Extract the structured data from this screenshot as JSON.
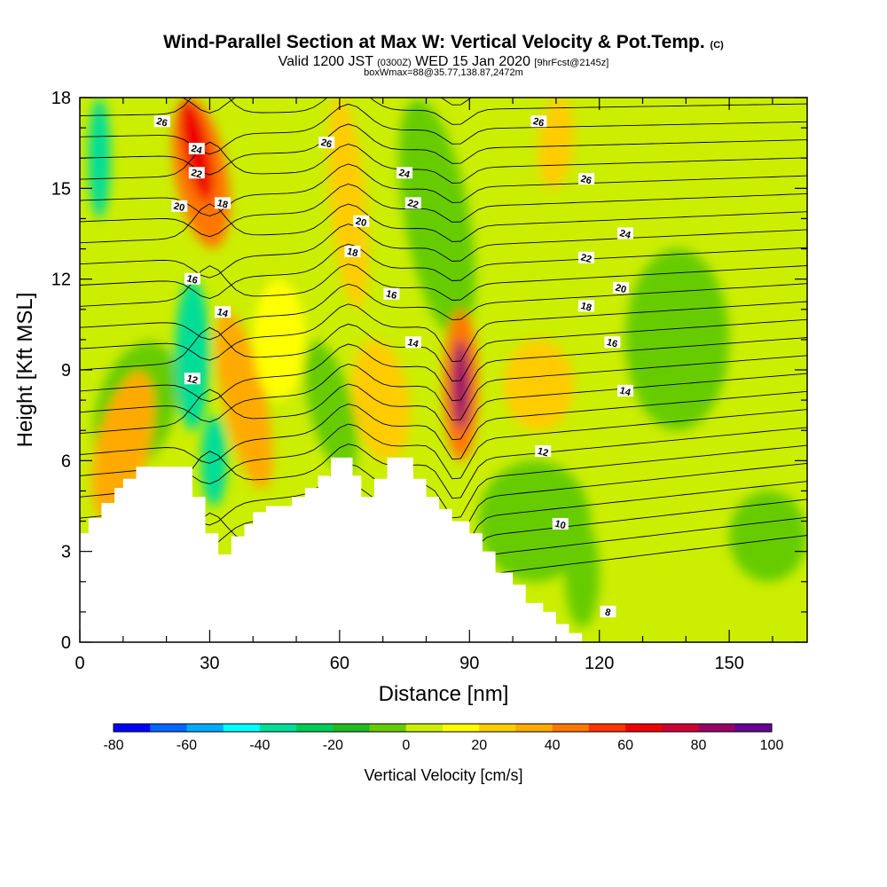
{
  "header": {
    "title": "Wind-Parallel Section at Max W: Vertical Velocity & Pot.Temp.",
    "copyright": "(C)",
    "valid_main": "Valid 1200 JST",
    "valid_utc": "(0300Z)",
    "valid_date": "WED 15 Jan 2020",
    "forecast": "[9hrFcst@2145z]",
    "box_info": "boxWmax=88@35.77,138.87,2472m"
  },
  "chart_data": {
    "type": "heatmap",
    "xlabel": "Distance [nm]",
    "ylabel": "Height [Kft MSL]",
    "xlim": [
      0,
      168
    ],
    "ylim": [
      0,
      18
    ],
    "x_ticks": [
      0,
      30,
      60,
      90,
      120,
      150
    ],
    "y_ticks": [
      0,
      3,
      6,
      9,
      12,
      15,
      18
    ],
    "colorbar": {
      "label": "Vertical Velocity [cm/s]",
      "min": -80,
      "max": 100,
      "step": 10,
      "tick_labels": [
        "-80",
        "-60",
        "-40",
        "-20",
        "0",
        "20",
        "40",
        "60",
        "80",
        "100"
      ],
      "colors": [
        "#0000ff",
        "#0066ff",
        "#00aaff",
        "#00ffff",
        "#00dd99",
        "#00cc55",
        "#22bb22",
        "#66cc00",
        "#ccee00",
        "#ffff00",
        "#ffcc00",
        "#ffaa00",
        "#ff7700",
        "#ff3300",
        "#ee0000",
        "#cc0033",
        "#990066",
        "#660099"
      ]
    },
    "max_w_cms": 88,
    "max_w_location": {
      "distance_nm": 88,
      "height_kft": 8
    },
    "isentrope_labels": [
      {
        "value": "26",
        "x": 19,
        "y": 17.2
      },
      {
        "value": "24",
        "x": 27,
        "y": 16.3
      },
      {
        "value": "22",
        "x": 27,
        "y": 15.5
      },
      {
        "value": "20",
        "x": 23,
        "y": 14.4
      },
      {
        "value": "18",
        "x": 33,
        "y": 14.5
      },
      {
        "value": "16",
        "x": 26,
        "y": 12.0
      },
      {
        "value": "14",
        "x": 33,
        "y": 10.9
      },
      {
        "value": "12",
        "x": 26,
        "y": 8.7
      },
      {
        "value": "26",
        "x": 57,
        "y": 16.5
      },
      {
        "value": "24",
        "x": 75,
        "y": 15.5
      },
      {
        "value": "22",
        "x": 77,
        "y": 14.5
      },
      {
        "value": "20",
        "x": 65,
        "y": 13.9
      },
      {
        "value": "18",
        "x": 63,
        "y": 12.9
      },
      {
        "value": "16",
        "x": 72,
        "y": 11.5
      },
      {
        "value": "14",
        "x": 77,
        "y": 9.9
      },
      {
        "value": "26",
        "x": 106,
        "y": 17.2
      },
      {
        "value": "26",
        "x": 117,
        "y": 15.3
      },
      {
        "value": "24",
        "x": 126,
        "y": 13.5
      },
      {
        "value": "22",
        "x": 117,
        "y": 12.7
      },
      {
        "value": "20",
        "x": 125,
        "y": 11.7
      },
      {
        "value": "18",
        "x": 117,
        "y": 11.1
      },
      {
        "value": "16",
        "x": 123,
        "y": 9.9
      },
      {
        "value": "14",
        "x": 126,
        "y": 8.3
      },
      {
        "value": "12",
        "x": 107,
        "y": 6.3
      },
      {
        "value": "10",
        "x": 111,
        "y": 3.9
      },
      {
        "value": "8",
        "x": 122,
        "y": 1.0
      }
    ],
    "terrain": [
      [
        0,
        3.6
      ],
      [
        2,
        3.6
      ],
      [
        2,
        4.1
      ],
      [
        5,
        4.1
      ],
      [
        5,
        4.6
      ],
      [
        8,
        4.6
      ],
      [
        8,
        5.1
      ],
      [
        10,
        5.1
      ],
      [
        10,
        5.4
      ],
      [
        13,
        5.4
      ],
      [
        13,
        5.8
      ],
      [
        26,
        5.8
      ],
      [
        26,
        4.8
      ],
      [
        29,
        4.8
      ],
      [
        29,
        3.6
      ],
      [
        32,
        3.6
      ],
      [
        32,
        2.9
      ],
      [
        35,
        2.9
      ],
      [
        35,
        3.5
      ],
      [
        38,
        3.5
      ],
      [
        38,
        3.9
      ],
      [
        40,
        3.9
      ],
      [
        40,
        4.3
      ],
      [
        43,
        4.3
      ],
      [
        43,
        4.5
      ],
      [
        49,
        4.5
      ],
      [
        49,
        4.8
      ],
      [
        52,
        4.8
      ],
      [
        52,
        5.1
      ],
      [
        55,
        5.1
      ],
      [
        55,
        5.5
      ],
      [
        58,
        5.5
      ],
      [
        58,
        6.1
      ],
      [
        63,
        6.1
      ],
      [
        63,
        5.5
      ],
      [
        65,
        5.5
      ],
      [
        65,
        4.8
      ],
      [
        68,
        4.8
      ],
      [
        68,
        5.4
      ],
      [
        71,
        5.4
      ],
      [
        71,
        6.1
      ],
      [
        77,
        6.1
      ],
      [
        77,
        5.4
      ],
      [
        80,
        5.4
      ],
      [
        80,
        4.8
      ],
      [
        83,
        4.8
      ],
      [
        83,
        4.4
      ],
      [
        86,
        4.4
      ],
      [
        86,
        4.0
      ],
      [
        90,
        4.0
      ],
      [
        90,
        3.6
      ],
      [
        93,
        3.6
      ],
      [
        93,
        3.0
      ],
      [
        96,
        3.0
      ],
      [
        96,
        2.3
      ],
      [
        100,
        2.3
      ],
      [
        100,
        1.9
      ],
      [
        103,
        1.9
      ],
      [
        103,
        1.3
      ],
      [
        107,
        1.3
      ],
      [
        107,
        1.0
      ],
      [
        110,
        1.0
      ],
      [
        110,
        0.6
      ],
      [
        113,
        0.6
      ],
      [
        113,
        0.3
      ],
      [
        116,
        0.3
      ],
      [
        116,
        0
      ],
      [
        0,
        0
      ]
    ]
  }
}
